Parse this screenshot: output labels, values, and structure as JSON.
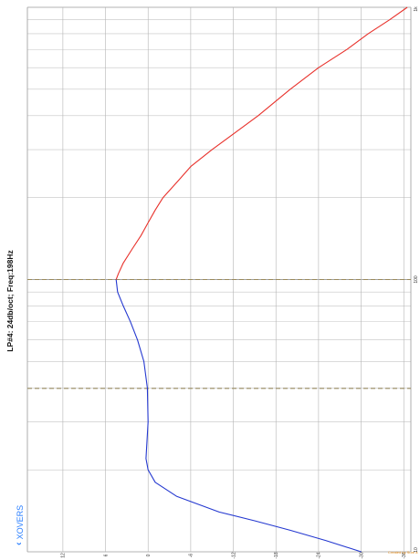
{
  "title": "LP#4: 24db/oct; Freq:198Hz",
  "nav": {
    "back_label": "XOVERS"
  },
  "credit": "Created by Sure a",
  "chart_data": {
    "type": "line",
    "orientation": "rotated-90",
    "xlabel": "",
    "ylabel": "",
    "gain_ticks": [
      12,
      6,
      0,
      -6,
      -12,
      -18,
      -24,
      -30,
      -36
    ],
    "freq_ticks_labeled": [
      {
        "label": "1k",
        "freq": 1000
      },
      {
        "label": "100",
        "freq": 100
      },
      {
        "label": "10",
        "freq": 10
      }
    ],
    "freq_range": [
      10,
      1000
    ],
    "gain_range": [
      17,
      -37
    ],
    "grid": true,
    "markers": [
      {
        "freq": 100,
        "style": "dashed",
        "color": "#9a8a5a"
      },
      {
        "freq": 39.8,
        "style": "dashed",
        "color": "#9a8a5a"
      }
    ],
    "series": [
      {
        "color": "#e8312b",
        "points": [
          [
            100,
            4.5
          ],
          [
            105,
            4.2
          ],
          [
            115,
            3.5
          ],
          [
            130,
            2.2
          ],
          [
            145,
            1.0
          ],
          [
            160,
            0.1
          ],
          [
            180,
            -1.0
          ],
          [
            200,
            -2.1
          ],
          [
            230,
            -4.2
          ],
          [
            260,
            -6.0
          ],
          [
            300,
            -9.0
          ],
          [
            350,
            -12.5
          ],
          [
            400,
            -15.5
          ],
          [
            500,
            -20.0
          ],
          [
            600,
            -24.0
          ],
          [
            700,
            -28.0
          ],
          [
            800,
            -31.0
          ],
          [
            900,
            -34.0
          ],
          [
            1000,
            -36.5
          ]
        ]
      },
      {
        "color": "#2438d0",
        "points": [
          [
            100,
            4.5
          ],
          [
            90,
            4.3
          ],
          [
            80,
            3.5
          ],
          [
            70,
            2.5
          ],
          [
            60,
            1.5
          ],
          [
            50,
            0.6
          ],
          [
            40,
            0.1
          ],
          [
            30,
            0.0
          ],
          [
            22,
            0.3
          ],
          [
            20,
            0.0
          ],
          [
            18,
            -1.0
          ],
          [
            16,
            -4.0
          ],
          [
            14,
            -10.0
          ],
          [
            13,
            -15.0
          ],
          [
            12,
            -20.0
          ],
          [
            11,
            -25.0
          ],
          [
            10,
            -30.0
          ]
        ]
      }
    ]
  }
}
